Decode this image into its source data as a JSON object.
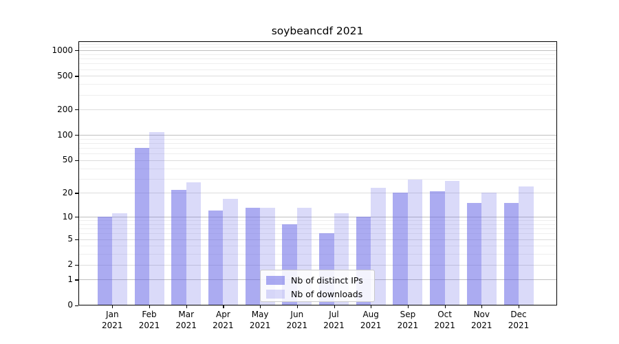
{
  "figure": {
    "title": "soybeancdf 2021"
  },
  "chart_data": {
    "type": "bar",
    "title": "soybeancdf 2021",
    "categories": [
      "Jan 2021",
      "Feb 2021",
      "Mar 2021",
      "Apr 2021",
      "May 2021",
      "Jun 2021",
      "Jul 2021",
      "Aug 2021",
      "Sep 2021",
      "Oct 2021",
      "Nov 2021",
      "Dec 2021"
    ],
    "series": [
      {
        "name": "Nb of distinct IPs",
        "values": [
          10,
          70,
          22,
          12,
          13,
          8,
          6,
          10,
          20,
          21,
          15,
          15
        ],
        "color": "rgba(102,102,230,0.55)",
        "color_hex": "#aaaaf0"
      },
      {
        "name": "Nb of downloads",
        "values": [
          11,
          108,
          27,
          17,
          13,
          13,
          11,
          23,
          29,
          28,
          20,
          24
        ],
        "color": "rgba(102,102,230,0.24)",
        "color_hex": "#dbdbf8"
      }
    ],
    "yscale": "log1p",
    "xlabel": "",
    "ylabel": "",
    "yticks": [
      0,
      1,
      2,
      5,
      10,
      20,
      50,
      100,
      200,
      500,
      1000
    ],
    "ylim": [
      0,
      1300
    ],
    "grid": true,
    "legend_position": "lower center"
  }
}
